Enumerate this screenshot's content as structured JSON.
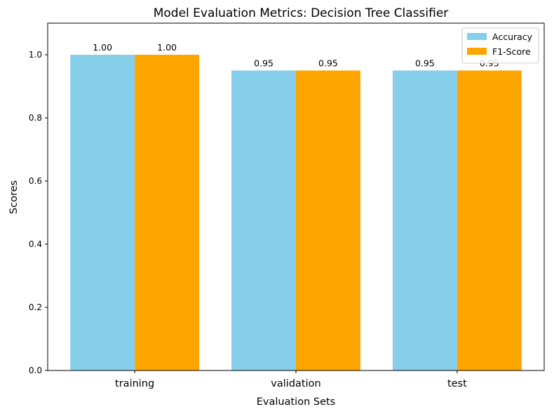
{
  "chart_data": {
    "type": "bar",
    "title": "Model Evaluation Metrics: Decision Tree Classifier",
    "xlabel": "Evaluation Sets",
    "ylabel": "Scores",
    "categories": [
      "training",
      "validation",
      "test"
    ],
    "series": [
      {
        "name": "Accuracy",
        "color": "#87CEEB",
        "values": [
          1.0,
          0.95,
          0.95
        ],
        "labels": [
          "1.00",
          "0.95",
          "0.95"
        ]
      },
      {
        "name": "F1-Score",
        "color": "#FFA500",
        "values": [
          1.0,
          0.95,
          0.95
        ],
        "labels": [
          "1.00",
          "0.95",
          "0.95"
        ]
      }
    ],
    "ylim": [
      0,
      1.1
    ],
    "yticks": [
      0.0,
      0.2,
      0.4,
      0.6,
      0.8,
      1.0
    ],
    "ytick_labels": [
      "0.0",
      "0.2",
      "0.4",
      "0.6",
      "0.8",
      "1.0"
    ],
    "grid": false,
    "legend_position": "top-right"
  }
}
